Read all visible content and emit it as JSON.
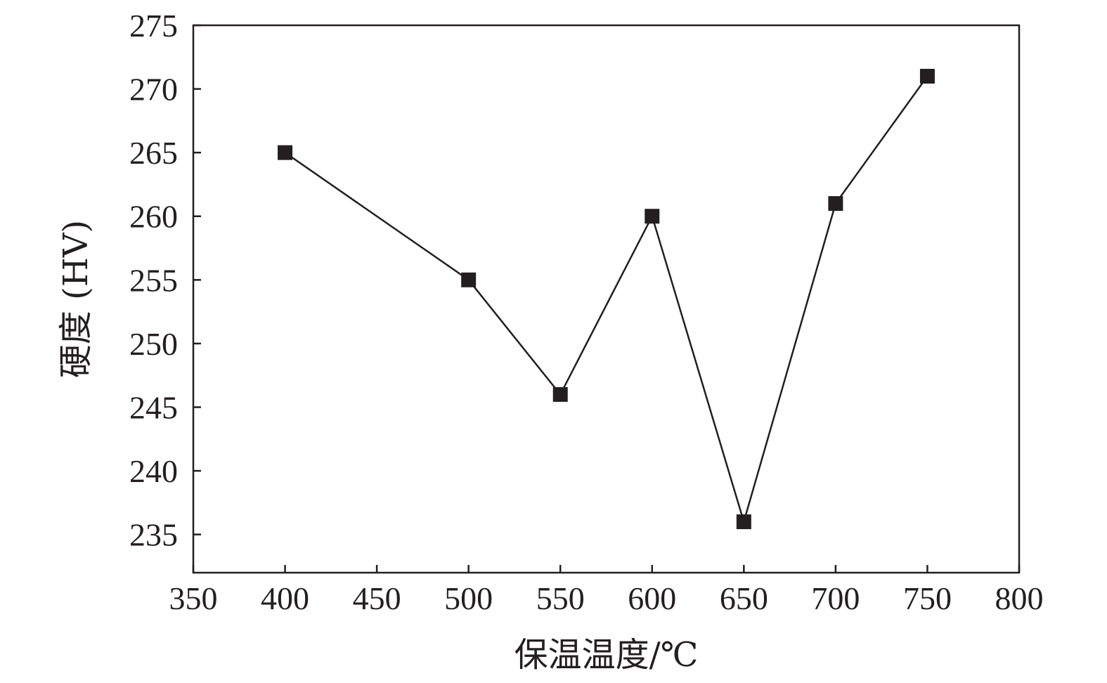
{
  "chart_data": {
    "type": "line",
    "x": [
      400,
      500,
      550,
      600,
      650,
      700,
      750
    ],
    "series": [
      {
        "values": [
          265,
          255,
          246,
          260,
          236,
          261,
          271
        ]
      }
    ],
    "xlabel": "保温温度/℃",
    "ylabel": "硬度 (HV)",
    "xlim": [
      350,
      800
    ],
    "ylim": [
      232,
      275
    ],
    "xticks": [
      350,
      400,
      450,
      500,
      550,
      600,
      650,
      700,
      750,
      800
    ],
    "yticks": [
      235,
      240,
      245,
      250,
      255,
      260,
      265,
      270,
      275
    ],
    "grid": false,
    "marker": "square",
    "line_color": "#231f20",
    "marker_color": "#231f20"
  }
}
